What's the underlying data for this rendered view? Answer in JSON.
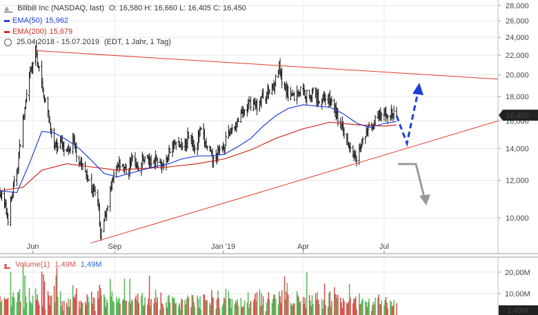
{
  "header": {
    "title": "Bilibili Inc (NASDAQ, last)",
    "ohlc": "O: 16,580  H: 16,660  L: 16,405  C: 16,450",
    "ema50_label": "EMA(50)",
    "ema50_value": "15,962",
    "ema200_label": "EMA(200)",
    "ema200_value": "15,679",
    "date_range": "25.04.2018 - 15.07.2019",
    "interval": "(EDT, 1 Jahr, 1 Tag)",
    "volume_label": "Volume(1)",
    "volume_value_red": "1,49M",
    "volume_value_blue": "1,49M"
  },
  "colors": {
    "ema50": "#1f3fd6",
    "ema200": "#cc2b1d",
    "trendline": "#e2382a",
    "bull_arrow": "#1f3fd6",
    "bear_arrow": "#999999",
    "vol_up": "#5cb85c",
    "vol_down": "#d9534f",
    "last_price_bg": "#222222"
  },
  "chart_data": [
    {
      "type": "candlestick",
      "title": "Bilibili Inc (NASDAQ, last)",
      "x_range": [
        "2018-04-25",
        "2019-07-15"
      ],
      "x_ticks": [
        "Jun",
        "Sep",
        "Jan '19",
        "Apr",
        "Jul"
      ],
      "y_scale": "log",
      "ylim": [
        8.8,
        28.5
      ],
      "y_ticks": [
        "28,000",
        "26,000",
        "24,000",
        "22,000",
        "20,000",
        "18,000",
        "16,000",
        "14,000",
        "12,000",
        "10,000"
      ],
      "y_tick_values": [
        28,
        26,
        24,
        22,
        20,
        18,
        16,
        14,
        12,
        10
      ],
      "last_price": "16,450",
      "last_price_value": 16.45,
      "price_path": [
        [
          "2018-04-25",
          11.4
        ],
        [
          "2018-05-04",
          10.0
        ],
        [
          "2018-05-14",
          12.5
        ],
        [
          "2018-05-21",
          16.0
        ],
        [
          "2018-05-28",
          19.5
        ],
        [
          "2018-06-04",
          22.5
        ],
        [
          "2018-06-11",
          19.0
        ],
        [
          "2018-06-18",
          16.5
        ],
        [
          "2018-06-25",
          14.0
        ],
        [
          "2018-07-02",
          14.5
        ],
        [
          "2018-07-09",
          13.5
        ],
        [
          "2018-07-16",
          14.5
        ],
        [
          "2018-07-23",
          13.2
        ],
        [
          "2018-07-30",
          12.5
        ],
        [
          "2018-08-06",
          11.5
        ],
        [
          "2018-08-13",
          11.0
        ],
        [
          "2018-08-16",
          9.0
        ],
        [
          "2018-08-23",
          10.5
        ],
        [
          "2018-08-31",
          12.2
        ],
        [
          "2018-09-07",
          13.0
        ],
        [
          "2018-09-14",
          12.5
        ],
        [
          "2018-09-21",
          13.3
        ],
        [
          "2018-09-28",
          12.8
        ],
        [
          "2018-10-05",
          13.5
        ],
        [
          "2018-10-12",
          13.0
        ],
        [
          "2018-10-19",
          13.4
        ],
        [
          "2018-10-26",
          12.8
        ],
        [
          "2018-11-02",
          13.8
        ],
        [
          "2018-11-09",
          14.4
        ],
        [
          "2018-11-16",
          14.0
        ],
        [
          "2018-11-23",
          15.0
        ],
        [
          "2018-11-30",
          14.2
        ],
        [
          "2018-12-07",
          15.2
        ],
        [
          "2018-12-14",
          14.0
        ],
        [
          "2018-12-21",
          13.2
        ],
        [
          "2018-12-28",
          13.8
        ],
        [
          "2019-01-04",
          14.5
        ],
        [
          "2019-01-11",
          15.5
        ],
        [
          "2019-01-18",
          16.0
        ],
        [
          "2019-01-25",
          16.8
        ],
        [
          "2019-02-01",
          17.5
        ],
        [
          "2019-02-08",
          17.2
        ],
        [
          "2019-02-15",
          18.0
        ],
        [
          "2019-02-22",
          18.5
        ],
        [
          "2019-03-01",
          19.5
        ],
        [
          "2019-03-05",
          20.8
        ],
        [
          "2019-03-08",
          19.0
        ],
        [
          "2019-03-15",
          18.4
        ],
        [
          "2019-03-22",
          18.0
        ],
        [
          "2019-03-29",
          18.6
        ],
        [
          "2019-04-05",
          18.2
        ],
        [
          "2019-04-12",
          18.3
        ],
        [
          "2019-04-19",
          17.7
        ],
        [
          "2019-04-26",
          18.0
        ],
        [
          "2019-05-03",
          17.5
        ],
        [
          "2019-05-10",
          16.2
        ],
        [
          "2019-05-17",
          15.0
        ],
        [
          "2019-05-24",
          14.2
        ],
        [
          "2019-05-31",
          13.5
        ],
        [
          "2019-06-07",
          14.5
        ],
        [
          "2019-06-14",
          15.4
        ],
        [
          "2019-06-21",
          16.0
        ],
        [
          "2019-06-28",
          16.4
        ],
        [
          "2019-07-05",
          16.6
        ],
        [
          "2019-07-15",
          16.45
        ]
      ],
      "series": [
        {
          "name": "EMA(50)",
          "last_value": 15.962,
          "points": [
            [
              "2018-04-25",
              11.4
            ],
            [
              "2018-05-14",
              11.3
            ],
            [
              "2018-05-28",
              13.0
            ],
            [
              "2018-06-11",
              15.2
            ],
            [
              "2018-06-25",
              15.1
            ],
            [
              "2018-07-09",
              14.6
            ],
            [
              "2018-07-23",
              14.0
            ],
            [
              "2018-08-06",
              13.2
            ],
            [
              "2018-08-20",
              12.4
            ],
            [
              "2018-09-04",
              12.2
            ],
            [
              "2018-09-17",
              12.4
            ],
            [
              "2018-10-01",
              12.6
            ],
            [
              "2018-10-15",
              12.8
            ],
            [
              "2018-11-01",
              13.0
            ],
            [
              "2018-11-15",
              13.3
            ],
            [
              "2018-12-03",
              13.5
            ],
            [
              "2018-12-17",
              13.5
            ],
            [
              "2019-01-02",
              13.6
            ],
            [
              "2019-01-17",
              14.1
            ],
            [
              "2019-02-01",
              14.7
            ],
            [
              "2019-02-15",
              15.6
            ],
            [
              "2019-03-01",
              16.4
            ],
            [
              "2019-03-15",
              17.0
            ],
            [
              "2019-04-01",
              17.3
            ],
            [
              "2019-04-15",
              17.2
            ],
            [
              "2019-05-01",
              17.1
            ],
            [
              "2019-05-15",
              16.6
            ],
            [
              "2019-06-01",
              15.8
            ],
            [
              "2019-06-15",
              15.5
            ],
            [
              "2019-07-01",
              15.8
            ],
            [
              "2019-07-15",
              15.96
            ]
          ]
        },
        {
          "name": "EMA(200)",
          "last_value": 15.679,
          "points": [
            [
              "2018-04-25",
              11.4
            ],
            [
              "2018-05-21",
              11.6
            ],
            [
              "2018-06-11",
              12.6
            ],
            [
              "2018-07-09",
              13.0
            ],
            [
              "2018-08-06",
              12.8
            ],
            [
              "2018-09-04",
              12.6
            ],
            [
              "2018-10-01",
              12.7
            ],
            [
              "2018-11-01",
              12.8
            ],
            [
              "2018-12-03",
              13.0
            ],
            [
              "2019-01-02",
              13.3
            ],
            [
              "2019-02-01",
              13.9
            ],
            [
              "2019-03-01",
              14.7
            ],
            [
              "2019-04-01",
              15.4
            ],
            [
              "2019-05-01",
              15.9
            ],
            [
              "2019-06-01",
              15.7
            ],
            [
              "2019-07-01",
              15.6
            ],
            [
              "2019-07-15",
              15.68
            ]
          ]
        },
        {
          "name": "Volume(1)",
          "ylim": [
            0,
            27
          ],
          "y_ticks": [
            "20,00M",
            "10,00M"
          ],
          "y_tick_values": [
            20,
            10
          ],
          "last_value": "1,49M",
          "last_value_number": 1.49
        }
      ]
    }
  ]
}
